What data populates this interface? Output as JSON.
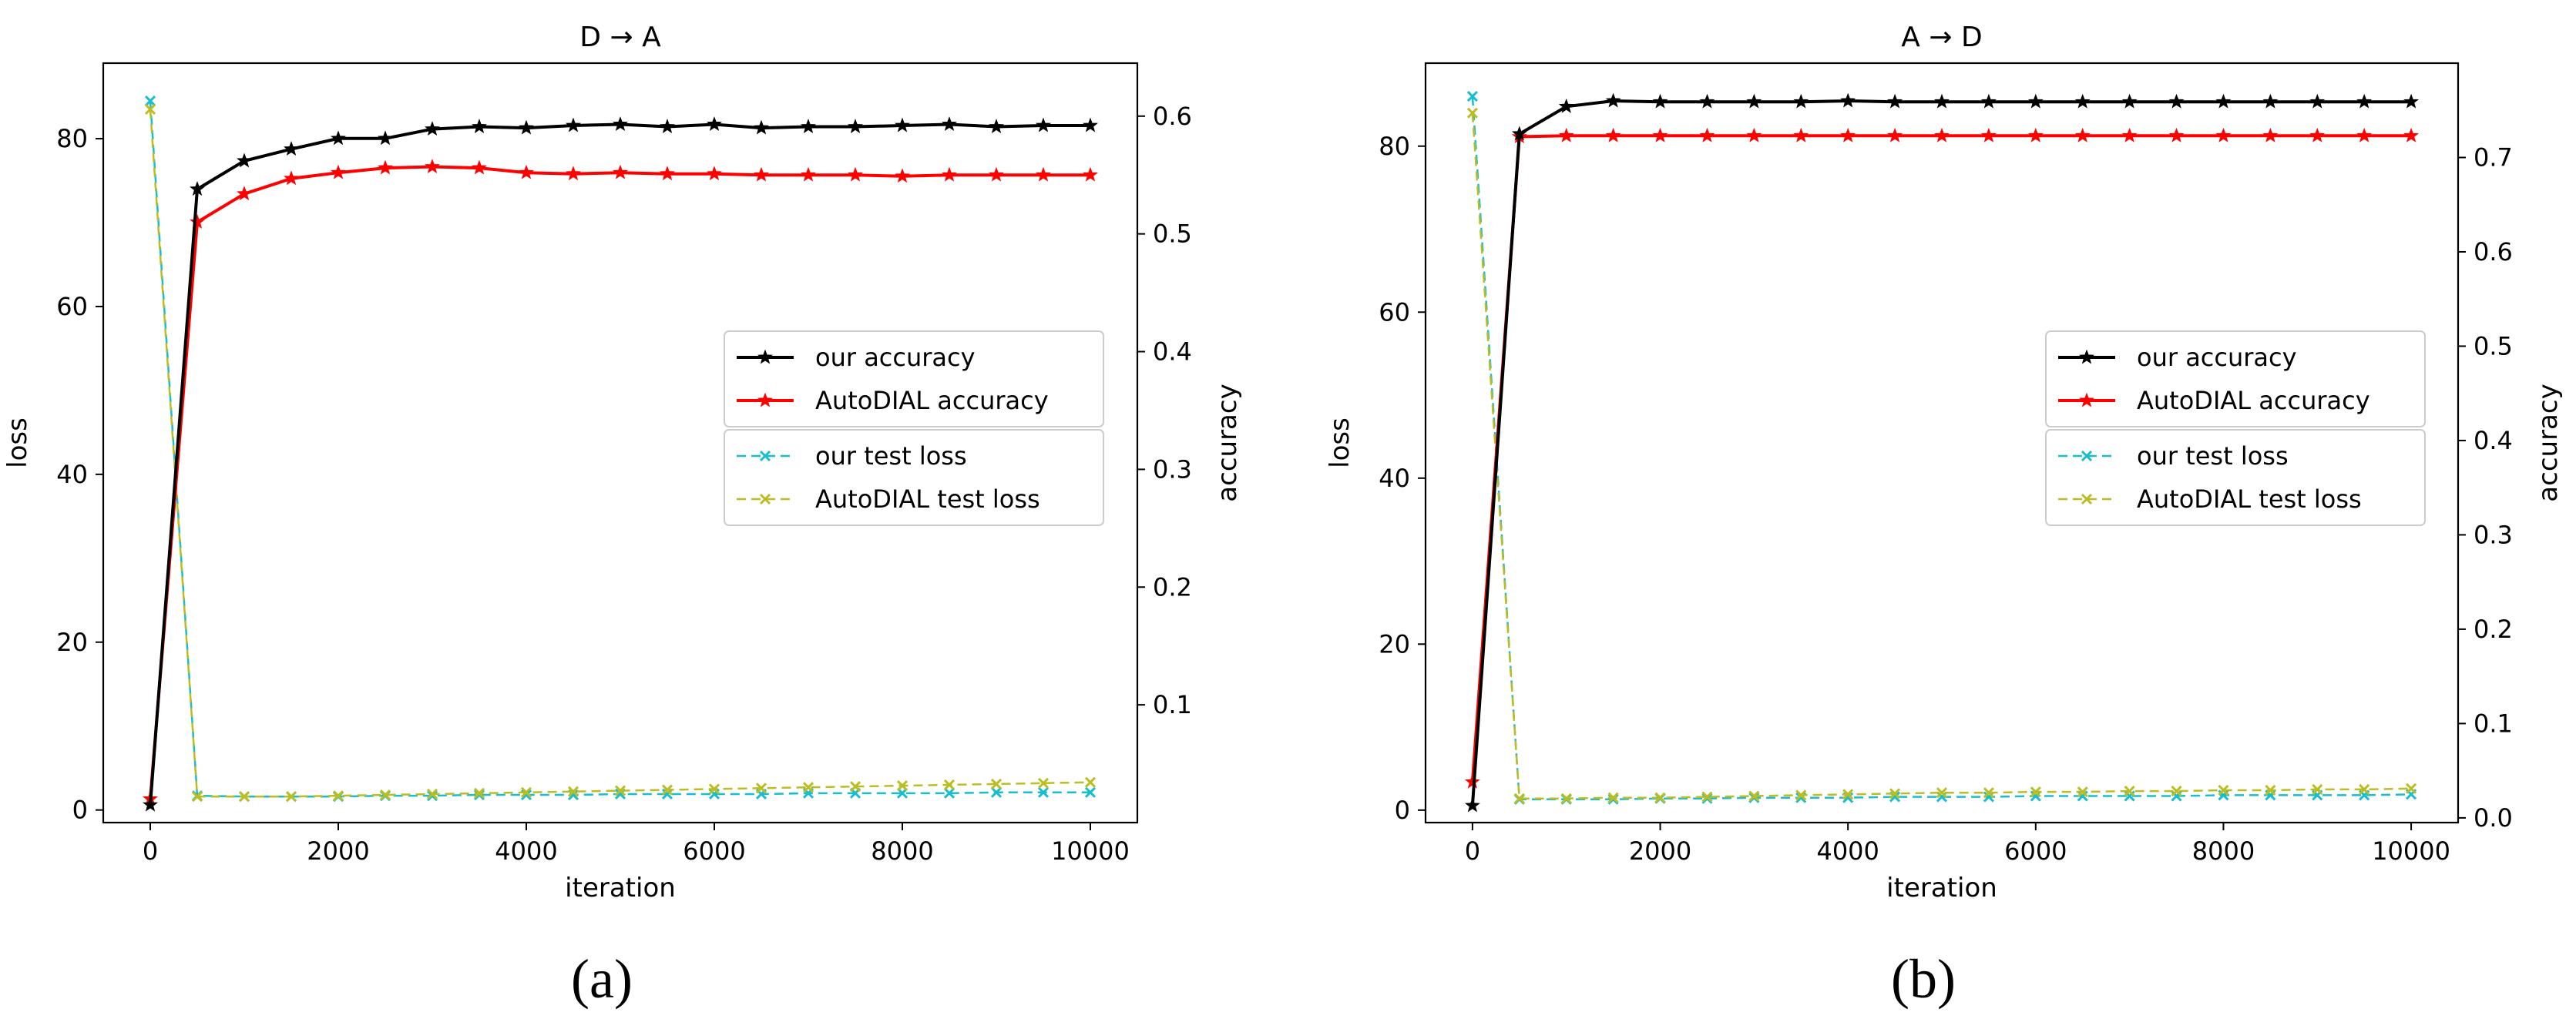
{
  "chart_data": [
    {
      "type": "line",
      "title": "D → A",
      "xlabel": "iteration",
      "ylabel": "loss",
      "y2label": "accuracy",
      "xlim": [
        -500,
        10500
      ],
      "ylim": [
        -1.5,
        89
      ],
      "y2lim": [
        0.0,
        0.645
      ],
      "xticks": [
        0,
        2000,
        4000,
        6000,
        8000,
        10000
      ],
      "yticks": [
        0,
        20,
        40,
        60,
        80
      ],
      "y2ticks": [
        0.1,
        0.2,
        0.3,
        0.4,
        0.5,
        0.6
      ],
      "x": [
        0,
        500,
        1000,
        1500,
        2000,
        2500,
        3000,
        3500,
        4000,
        4500,
        5000,
        5500,
        6000,
        6500,
        7000,
        7500,
        8000,
        8500,
        9000,
        9500,
        10000
      ],
      "grid": false,
      "legend_placement": "center-right",
      "caption": "(a)",
      "series": [
        {
          "name": "our accuracy",
          "axis": "right",
          "color": "#000000",
          "style": "solid",
          "marker": "star",
          "values": [
            0.015,
            0.538,
            0.562,
            0.572,
            0.581,
            0.581,
            0.589,
            0.591,
            0.59,
            0.592,
            0.593,
            0.591,
            0.593,
            0.59,
            0.591,
            0.591,
            0.592,
            0.593,
            0.591,
            0.592,
            0.592
          ]
        },
        {
          "name": "AutoDIAL accuracy",
          "axis": "right",
          "color": "#ff0000",
          "style": "solid",
          "marker": "star",
          "values": [
            0.02,
            0.51,
            0.534,
            0.547,
            0.552,
            0.556,
            0.557,
            0.556,
            0.552,
            0.551,
            0.552,
            0.551,
            0.551,
            0.55,
            0.55,
            0.55,
            0.549,
            0.55,
            0.55,
            0.55,
            0.55
          ]
        },
        {
          "name": "our test loss",
          "axis": "left",
          "color": "#17becf",
          "style": "dashed",
          "marker": "x",
          "values": [
            84.5,
            1.7,
            1.6,
            1.6,
            1.6,
            1.7,
            1.7,
            1.8,
            1.8,
            1.8,
            1.9,
            1.9,
            1.9,
            1.9,
            2.0,
            2.0,
            2.0,
            2.0,
            2.1,
            2.1,
            2.1
          ]
        },
        {
          "name": "AutoDIAL test loss",
          "axis": "left",
          "color": "#bcbd22",
          "style": "dashed",
          "marker": "x",
          "values": [
            83.5,
            1.6,
            1.6,
            1.6,
            1.7,
            1.8,
            1.9,
            2.0,
            2.1,
            2.2,
            2.3,
            2.4,
            2.5,
            2.6,
            2.7,
            2.8,
            2.9,
            3.0,
            3.1,
            3.2,
            3.3
          ]
        }
      ]
    },
    {
      "type": "line",
      "title": "A → D",
      "xlabel": "iteration",
      "ylabel": "loss",
      "y2label": "accuracy",
      "xlim": [
        -500,
        10500
      ],
      "ylim": [
        -1.5,
        90
      ],
      "y2lim": [
        -0.005,
        0.8
      ],
      "xticks": [
        0,
        2000,
        4000,
        6000,
        8000,
        10000
      ],
      "yticks": [
        0,
        20,
        40,
        60,
        80
      ],
      "y2ticks": [
        0.0,
        0.1,
        0.2,
        0.3,
        0.4,
        0.5,
        0.6,
        0.7
      ],
      "x": [
        0,
        500,
        1000,
        1500,
        2000,
        2500,
        3000,
        3500,
        4000,
        4500,
        5000,
        5500,
        6000,
        6500,
        7000,
        7500,
        8000,
        8500,
        9000,
        9500,
        10000
      ],
      "grid": false,
      "legend_placement": "center-right",
      "caption": "(b)",
      "series": [
        {
          "name": "our accuracy",
          "axis": "right",
          "color": "#000000",
          "style": "solid",
          "marker": "star",
          "values": [
            0.013,
            0.725,
            0.754,
            0.76,
            0.759,
            0.759,
            0.759,
            0.759,
            0.76,
            0.759,
            0.759,
            0.759,
            0.759,
            0.759,
            0.759,
            0.759,
            0.759,
            0.759,
            0.759,
            0.759,
            0.759
          ]
        },
        {
          "name": "AutoDIAL accuracy",
          "axis": "right",
          "color": "#ff0000",
          "style": "solid",
          "marker": "star",
          "values": [
            0.038,
            0.722,
            0.723,
            0.723,
            0.723,
            0.723,
            0.723,
            0.723,
            0.723,
            0.723,
            0.723,
            0.723,
            0.723,
            0.723,
            0.723,
            0.723,
            0.723,
            0.723,
            0.723,
            0.723,
            0.723
          ]
        },
        {
          "name": "our test loss",
          "axis": "left",
          "color": "#17becf",
          "style": "dashed",
          "marker": "x",
          "values": [
            86.0,
            1.3,
            1.3,
            1.3,
            1.4,
            1.4,
            1.5,
            1.5,
            1.5,
            1.6,
            1.6,
            1.6,
            1.7,
            1.7,
            1.7,
            1.7,
            1.8,
            1.8,
            1.8,
            1.8,
            1.9
          ]
        },
        {
          "name": "AutoDIAL test loss",
          "axis": "left",
          "color": "#bcbd22",
          "style": "dashed",
          "marker": "x",
          "values": [
            84.0,
            1.4,
            1.4,
            1.5,
            1.5,
            1.6,
            1.7,
            1.8,
            1.9,
            2.0,
            2.1,
            2.1,
            2.2,
            2.2,
            2.3,
            2.3,
            2.4,
            2.4,
            2.5,
            2.5,
            2.6
          ]
        }
      ]
    }
  ]
}
